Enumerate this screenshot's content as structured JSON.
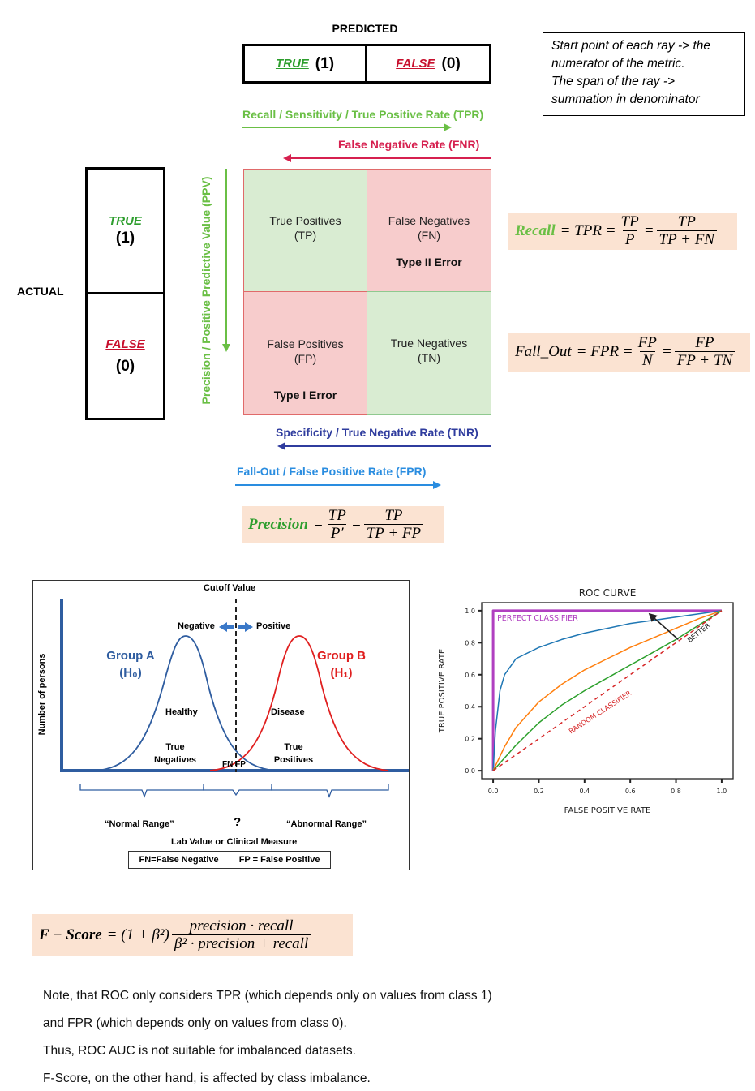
{
  "confusion": {
    "predicted_label": "PREDICTED",
    "actual_label": "ACTUAL",
    "true_word": "TRUE",
    "false_word": "FALSE",
    "one": "(1)",
    "zero": "(0)",
    "tp": "True Positives (TP)",
    "fn": "False Negatives (FN)",
    "fp": "False Positives (FP)",
    "tn": "True Negatives (TN)",
    "type2": "Type II Error",
    "type1": "Type I Error",
    "recall_arrow": "Recall / Sensitivity / True Positive Rate (TPR)",
    "fnr_arrow": "False Negative Rate (FNR)",
    "ppv_arrow": "Precision / Positive Predictive Value (PPV)",
    "tnr_arrow": "Specificity / True Negative Rate (TNR)",
    "fpr_arrow": "Fall-Out / False Positive Rate (FPR)"
  },
  "note_box": {
    "line1": "Start point of each ray -> the",
    "line2": "numerator of the metric.",
    "line3": "The span of the ray ->",
    "line4": "summation in denominator"
  },
  "formulas": {
    "recall": {
      "name": "Recall",
      "mid": "= TPR =",
      "n1": "TP",
      "d1": "P",
      "n2": "TP",
      "d2": "TP + FN"
    },
    "fallout": {
      "name": "Fall_Out",
      "mid": "= FPR =",
      "n1": "FP",
      "d1": "N",
      "n2": "FP",
      "d2": "FP + TN"
    },
    "precision": {
      "name": "Precision",
      "mid": "=",
      "n1": "TP",
      "d1": "P′",
      "n2": "TP",
      "d2": "TP + FP"
    },
    "fscore": {
      "name": "F − Score",
      "mid": "= (1 + β²)",
      "num": "precision · recall",
      "den": "β² · precision + recall"
    }
  },
  "dist": {
    "cutoff": "Cutoff Value",
    "negative": "Negative",
    "positive": "Positive",
    "group_a": "Group A",
    "h0": "(H₀)",
    "group_b": "Group B",
    "h1": "(H₁)",
    "healthy": "Healthy",
    "disease": "Disease",
    "true_neg_1": "True",
    "true_neg_2": "Negatives",
    "true_pos_1": "True",
    "true_pos_2": "Positives",
    "fnfp": "FN FP",
    "ylabel": "Number of persons",
    "normal_range": "“Normal Range”",
    "question": "?",
    "abnormal_range": "“Abnormal Range”",
    "xlabel": "Lab Value or Clinical Measure",
    "legend_fn": "FN=False Negative",
    "legend_fp": "FP = False Positive"
  },
  "roc": {
    "title": "ROC CURVE",
    "xlabel": "FALSE POSITIVE RATE",
    "ylabel": "TRUE POSITIVE RATE",
    "xticks": [
      "0.0",
      "0.2",
      "0.4",
      "0.6",
      "0.8",
      "1.0"
    ],
    "yticks": [
      "0.0",
      "0.2",
      "0.4",
      "0.6",
      "0.8",
      "1.0"
    ],
    "perfect": "PERFECT CLASSIFIER",
    "random": "RANDOM CLASSIFIER",
    "better": "BETTER",
    "colors": {
      "perfect": "#b040c0",
      "blue": "#1f77b4",
      "orange": "#ff7f0e",
      "green": "#2ca02c",
      "random": "#d62728"
    }
  },
  "chart_data": {
    "type": "line",
    "title": "ROC CURVE",
    "xlabel": "FALSE POSITIVE RATE",
    "ylabel": "TRUE POSITIVE RATE",
    "xlim": [
      0,
      1
    ],
    "ylim": [
      0,
      1
    ],
    "grid": false,
    "series": [
      {
        "name": "PERFECT CLASSIFIER",
        "x": [
          0,
          0,
          1
        ],
        "y": [
          0,
          1,
          1
        ]
      },
      {
        "x": [
          0,
          0.01,
          0.03,
          0.05,
          0.1,
          0.2,
          0.3,
          0.4,
          0.5,
          0.6,
          0.7,
          0.8,
          0.9,
          1.0
        ],
        "y": [
          0,
          0.25,
          0.5,
          0.6,
          0.7,
          0.77,
          0.82,
          0.86,
          0.89,
          0.92,
          0.94,
          0.96,
          0.98,
          1.0
        ]
      },
      {
        "x": [
          0,
          0.05,
          0.1,
          0.2,
          0.3,
          0.4,
          0.5,
          0.6,
          0.7,
          0.8,
          0.9,
          1.0
        ],
        "y": [
          0,
          0.15,
          0.27,
          0.43,
          0.54,
          0.63,
          0.7,
          0.77,
          0.83,
          0.89,
          0.95,
          1.0
        ]
      },
      {
        "x": [
          0,
          0.05,
          0.1,
          0.2,
          0.3,
          0.4,
          0.5,
          0.6,
          0.7,
          0.8,
          0.9,
          1.0
        ],
        "y": [
          0,
          0.08,
          0.16,
          0.3,
          0.41,
          0.5,
          0.58,
          0.66,
          0.74,
          0.82,
          0.91,
          1.0
        ]
      },
      {
        "name": "RANDOM CLASSIFIER",
        "x": [
          0,
          1
        ],
        "y": [
          0,
          1
        ]
      }
    ]
  },
  "notes": [
    "Note, that ROC only considers TPR (which depends only on values from class 1)",
    "and FPR (which depends only on values from class 0).",
    "Thus, ROC AUC is not suitable for imbalanced datasets.",
    "F-Score, on the other hand, is affected by class imbalance."
  ]
}
